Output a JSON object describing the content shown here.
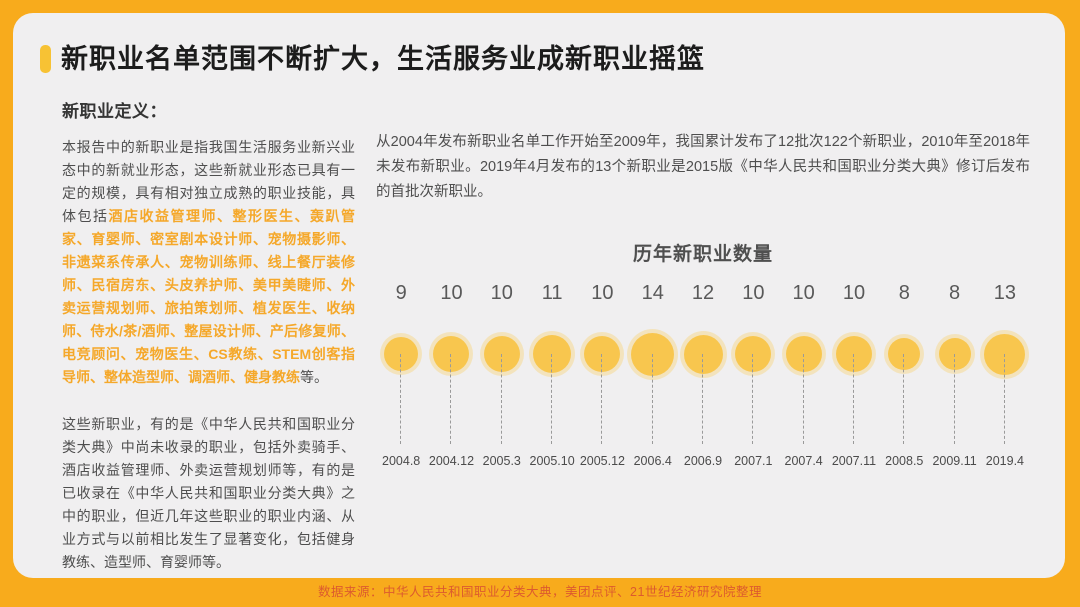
{
  "page": {
    "title": "新职业名单范围不断扩大，生活服务业成新职业摇篮",
    "footer_source": "数据来源：中华人民共和国职业分类大典，美团点评、21世纪经济研究院整理"
  },
  "left_panel": {
    "heading": "新职业定义：",
    "para1_prefix": "本报告中的新职业是指我国生活服务业新兴业态中的新就业形态，这些新就业形态已具有一定的规模，具有相对独立成熟的职业技能，具体包括",
    "para1_highlight": "酒店收益管理师、整形医生、轰趴管家、育婴师、密室剧本设计师、宠物摄影师、非遗菜系传承人、宠物训练师、线上餐厅装修师、民宿房东、头皮养护师、美甲美睫师、外卖运营规划师、旅拍策划师、植发医生、收纳师、侍水/茶/酒师、整屋设计师、产后修复师、电竞顾问、宠物医生、CS教练、STEM创客指导师、整体造型师、调酒师、健身教练",
    "para1_suffix": "等。",
    "para2": "这些新职业，有的是《中华人民共和国职业分类大典》中尚未收录的职业，包括外卖骑手、酒店收益管理师、外卖运营规划师等，有的是已收录在《中华人民共和国职业分类大典》之中的职业，但近几年这些职业的职业内涵、从业方式与以前相比发生了显著变化，包括健身教练、造型师、育婴师等。"
  },
  "right_panel": {
    "intro": "从2004年发布新职业名单工作开始至2009年，我国累计发布了12批次122个新职业，2010年至2018年未发布新职业。2019年4月发布的13个新职业是2015版《中华人民共和国职业分类大典》修订后发布的首批次新职业。"
  },
  "chart_data": {
    "type": "scatter",
    "subtype": "bubble-lollipop",
    "title": "历年新职业数量",
    "categories": [
      "2004.8",
      "2004.12",
      "2005.3",
      "2005.10",
      "2005.12",
      "2006.4",
      "2006.9",
      "2007.1",
      "2007.4",
      "2007.11",
      "2008.5",
      "2009.11",
      "2019.4"
    ],
    "values": [
      9,
      10,
      10,
      11,
      10,
      14,
      12,
      10,
      10,
      10,
      8,
      8,
      13
    ],
    "value_labels_shown": true,
    "legend": "none",
    "bubble_size": "area proportional to value"
  },
  "colors": {
    "frame": "#F8AB1C",
    "accent_bar": "#F7C234",
    "card_background": "#F0EFF0",
    "highlight_text": "#F5A82A",
    "bubble_fill": "#F8C64E",
    "footer_text": "#DC5B2E"
  }
}
